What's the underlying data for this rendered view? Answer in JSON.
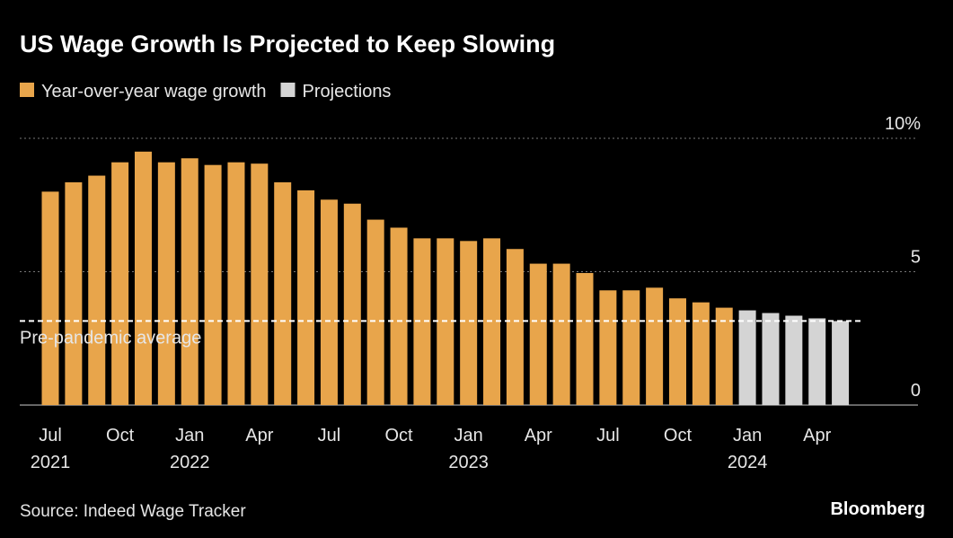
{
  "chart_data": {
    "type": "bar",
    "title": "US Wage Growth Is Projected to Keep Slowing",
    "source": "Source: Indeed Wage Tracker",
    "brand": "Bloomberg",
    "categories": [
      [
        "Jul",
        "2021"
      ],
      null,
      null,
      [
        "Oct"
      ],
      null,
      null,
      [
        "Jan",
        "2022"
      ],
      null,
      null,
      [
        "Apr"
      ],
      null,
      null,
      [
        "Jul"
      ],
      null,
      null,
      [
        "Oct"
      ],
      null,
      null,
      [
        "Jan",
        "2023"
      ],
      null,
      null,
      [
        "Apr"
      ],
      null,
      null,
      [
        "Jul"
      ],
      null,
      null,
      [
        "Oct"
      ],
      null,
      null,
      [
        "Jan",
        "2024"
      ],
      null,
      null,
      [
        "Apr"
      ],
      null
    ],
    "series": [
      {
        "name": "Year-over-year wage growth",
        "color": "#e8a54b",
        "values": [
          8.0,
          8.35,
          8.6,
          9.1,
          9.5,
          9.1,
          9.25,
          9.0,
          9.1,
          9.05,
          8.35,
          8.05,
          7.7,
          7.55,
          6.95,
          6.65,
          6.25,
          6.25,
          6.15,
          6.25,
          5.85,
          5.3,
          5.3,
          4.95,
          4.3,
          4.3,
          4.4,
          4.0,
          3.85,
          3.65,
          null,
          null,
          null,
          null,
          null
        ]
      },
      {
        "name": "Projections",
        "color": "#d4d4d4",
        "values": [
          null,
          null,
          null,
          null,
          null,
          null,
          null,
          null,
          null,
          null,
          null,
          null,
          null,
          null,
          null,
          null,
          null,
          null,
          null,
          null,
          null,
          null,
          null,
          null,
          null,
          null,
          null,
          null,
          null,
          null,
          3.55,
          3.45,
          3.35,
          3.25,
          3.15
        ]
      }
    ],
    "annotations": [
      {
        "label": "Pre-pandemic average",
        "value": 3.15
      }
    ],
    "ylim": [
      0,
      10.1
    ],
    "yticks": [
      0,
      5,
      {
        "value": 10,
        "label": "10%"
      }
    ],
    "grid": true
  }
}
